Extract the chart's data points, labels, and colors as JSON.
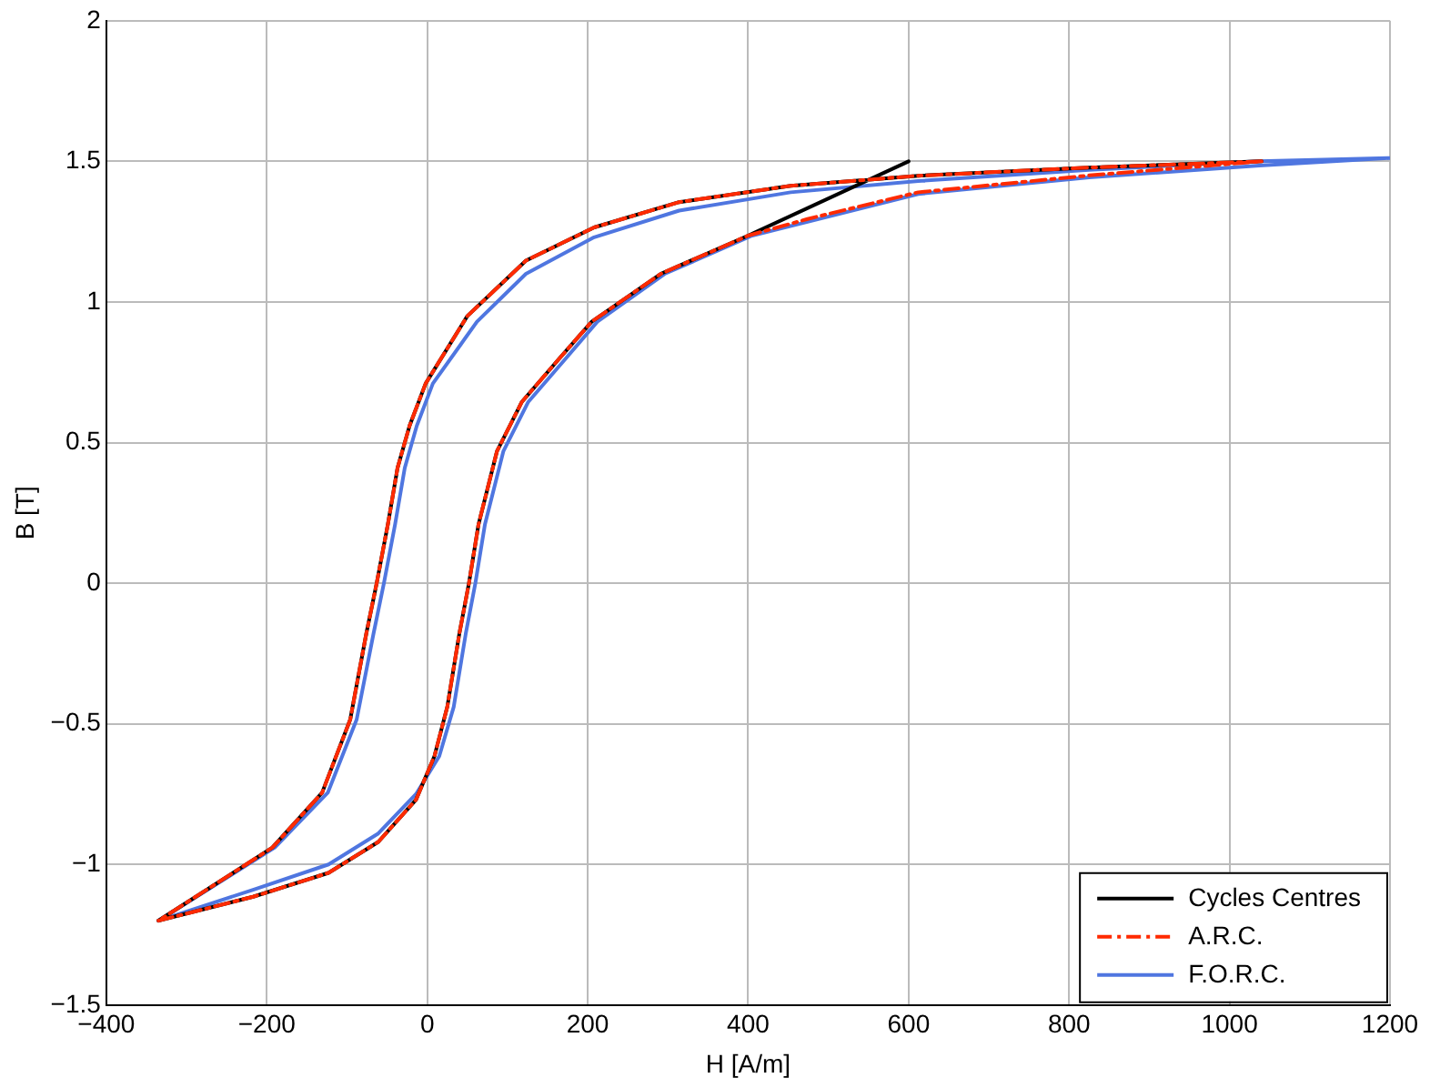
{
  "chart_data": {
    "type": "line",
    "xlabel": "H [A/m]",
    "ylabel": "B [T]",
    "xlim": [
      -400,
      1200
    ],
    "ylim": [
      -1.5,
      2
    ],
    "xticks": [
      -400,
      -200,
      0,
      200,
      400,
      600,
      800,
      1000,
      1200
    ],
    "yticks": [
      -1.5,
      -1,
      -0.5,
      0,
      0.5,
      1,
      1.5,
      2
    ],
    "grid": true,
    "legend": "bottom right",
    "marker": "none",
    "series": [
      {
        "name": "Cycles Centres",
        "color": "#000000",
        "line_style": "solid",
        "x": [
          -335,
          -217,
          -123,
          -61,
          -14,
          9,
          25,
          40,
          52,
          64,
          87,
          118,
          165,
          205,
          291,
          400,
          600,
          null,
          1040,
          825,
          612,
          453,
          314,
          208,
          123,
          50,
          -2,
          -22,
          -37,
          -49,
          -63,
          -76,
          -96,
          -131,
          -193,
          -335
        ],
        "values": [
          -1.2,
          -1.115,
          -1.03,
          -0.92,
          -0.77,
          -0.615,
          -0.44,
          -0.18,
          0,
          0.21,
          0.47,
          0.645,
          0.8,
          0.93,
          1.1,
          1.236,
          1.5,
          null,
          1.5,
          1.478,
          1.449,
          1.413,
          1.355,
          1.265,
          1.147,
          0.95,
          0.71,
          0.56,
          0.41,
          0.21,
          0,
          -0.18,
          -0.485,
          -0.745,
          -0.94,
          -1.2
        ]
      },
      {
        "name": "A.R.C.",
        "color": "#ff2a00",
        "line_style": "dashed",
        "x": [
          -335,
          -217,
          -123,
          -61,
          -14,
          9,
          25,
          40,
          52,
          64,
          87,
          118,
          165,
          205,
          291,
          400,
          474,
          612,
          825,
          1040,
          null,
          1040,
          825,
          612,
          453,
          314,
          208,
          123,
          50,
          -2,
          -22,
          -37,
          -49,
          -63,
          -76,
          -96,
          -131,
          -193,
          -335
        ],
        "values": [
          -1.2,
          -1.115,
          -1.03,
          -0.92,
          -0.77,
          -0.615,
          -0.44,
          -0.18,
          0,
          0.21,
          0.47,
          0.645,
          0.8,
          0.93,
          1.1,
          1.236,
          1.295,
          1.39,
          1.45,
          1.5,
          null,
          1.5,
          1.478,
          1.449,
          1.413,
          1.355,
          1.265,
          1.147,
          0.95,
          0.71,
          0.56,
          0.41,
          0.21,
          0,
          -0.18,
          -0.485,
          -0.745,
          -0.94,
          -1.2
        ]
      },
      {
        "name": "F.O.R.C.",
        "color": "#4f76e0",
        "line_style": "solid",
        "x": [
          -335,
          -217,
          -123,
          -61,
          -14,
          15,
          33,
          48,
          60,
          72,
          95,
          126,
          173,
          212,
          296,
          405,
          474,
          612,
          825,
          1037,
          1200,
          null,
          1200,
          1037,
          825,
          612,
          453,
          314,
          208,
          123,
          62,
          7,
          -13,
          -28,
          -40,
          -54,
          -67,
          -88,
          -124,
          -190,
          -335
        ],
        "values": [
          -1.2,
          -1.09,
          -1.0,
          -0.89,
          -0.75,
          -0.615,
          -0.44,
          -0.18,
          0,
          0.21,
          0.47,
          0.645,
          0.8,
          0.93,
          1.1,
          1.236,
          1.285,
          1.384,
          1.443,
          1.485,
          1.512,
          null,
          1.512,
          1.5,
          1.47,
          1.43,
          1.39,
          1.325,
          1.23,
          1.1,
          0.93,
          0.71,
          0.56,
          0.41,
          0.21,
          0,
          -0.18,
          -0.485,
          -0.745,
          -0.94,
          -1.2
        ]
      }
    ]
  }
}
